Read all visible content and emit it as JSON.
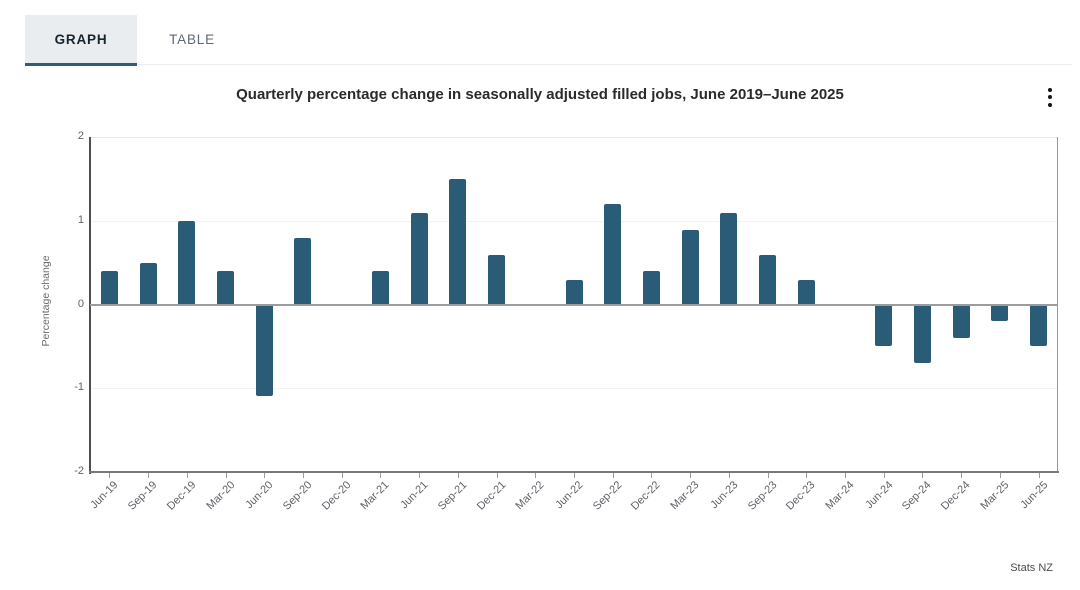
{
  "tabs": [
    {
      "label": "GRAPH",
      "active": true
    },
    {
      "label": "TABLE",
      "active": false
    }
  ],
  "menu": {
    "icon": "kebab-menu-icon"
  },
  "source": "Stats NZ",
  "colors": {
    "bar": "#2b5c77",
    "active_tab_underline": "#2f5d79",
    "zero_line": "#9c9c9c",
    "tab_background": "#e9edf0"
  },
  "chart_data": {
    "type": "bar",
    "title": "Quarterly percentage change in seasonally adjusted filled jobs, June 2019–June 2025",
    "xlabel": "",
    "ylabel": "Percentage change",
    "ylim": [
      -2,
      2
    ],
    "yticks": [
      2,
      1,
      0,
      -1,
      -2
    ],
    "ytick_labels": [
      "2",
      "1",
      "0",
      "-1",
      "-2"
    ],
    "grid": true,
    "legend": "none",
    "bar_color": "#2b5c77",
    "categories": [
      "Jun-19",
      "Sep-19",
      "Dec-19",
      "Mar-20",
      "Jun-20",
      "Sep-20",
      "Dec-20",
      "Mar-21",
      "Jun-21",
      "Sep-21",
      "Dec-21",
      "Mar-22",
      "Jun-22",
      "Sep-22",
      "Dec-22",
      "Mar-23",
      "Jun-23",
      "Sep-23",
      "Dec-23",
      "Mar-24",
      "Jun-24",
      "Sep-24",
      "Dec-24",
      "Mar-25",
      "Jun-25"
    ],
    "values": [
      0.4,
      0.5,
      1.0,
      0.4,
      -1.1,
      0.8,
      0.0,
      0.4,
      1.1,
      1.5,
      0.6,
      0.0,
      0.3,
      1.2,
      0.4,
      0.9,
      1.1,
      0.6,
      0.3,
      0.0,
      -0.5,
      -0.7,
      -0.4,
      -0.2,
      -0.5
    ]
  }
}
